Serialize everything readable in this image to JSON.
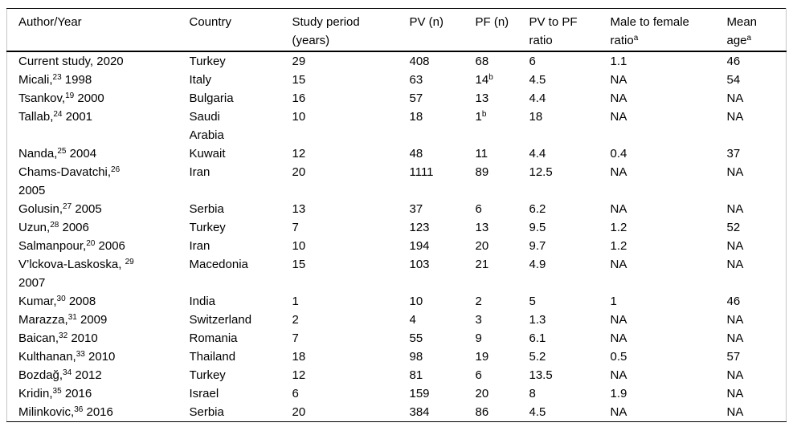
{
  "colors": {
    "background": "#ffffff",
    "text": "#000000",
    "rule": "#000000",
    "side_frame": "#c6c6c6"
  },
  "table": {
    "columns": [
      {
        "id": "author",
        "segments": [
          "Author/Year"
        ]
      },
      {
        "id": "country",
        "segments": [
          "Country"
        ]
      },
      {
        "id": "period",
        "segments": [
          "Study period\n(years)"
        ]
      },
      {
        "id": "pv",
        "segments": [
          "PV (n)"
        ]
      },
      {
        "id": "pf",
        "segments": [
          "PF (n)"
        ]
      },
      {
        "id": "ratio",
        "segments": [
          "PV to PF\nratio"
        ]
      },
      {
        "id": "mf",
        "segments": [
          "Male to female\nratio",
          {
            "sup": "a"
          }
        ]
      },
      {
        "id": "age",
        "segments": [
          "Mean\nage",
          {
            "sup": "a"
          }
        ]
      }
    ],
    "rows": [
      {
        "cells": [
          [
            "Current study, 2020"
          ],
          [
            "Turkey"
          ],
          [
            "29"
          ],
          [
            "408"
          ],
          [
            "68"
          ],
          [
            "6"
          ],
          [
            "1.1"
          ],
          [
            "46"
          ]
        ]
      },
      {
        "cells": [
          [
            "Micali,",
            {
              "sup": "23"
            },
            " 1998"
          ],
          [
            "Italy"
          ],
          [
            "15"
          ],
          [
            "63"
          ],
          [
            "14",
            {
              "sup": "b"
            }
          ],
          [
            "4.5"
          ],
          [
            "NA"
          ],
          [
            "54"
          ]
        ]
      },
      {
        "cells": [
          [
            "Tsankov,",
            {
              "sup": "19"
            },
            " 2000"
          ],
          [
            "Bulgaria"
          ],
          [
            "16"
          ],
          [
            "57"
          ],
          [
            "13"
          ],
          [
            "4.4"
          ],
          [
            "NA"
          ],
          [
            "NA"
          ]
        ]
      },
      {
        "cells": [
          [
            "Tallab,",
            {
              "sup": "24"
            },
            " 2001"
          ],
          [
            "Saudi\nArabia"
          ],
          [
            "10"
          ],
          [
            "18"
          ],
          [
            "1",
            {
              "sup": "b"
            }
          ],
          [
            "18"
          ],
          [
            "NA"
          ],
          [
            "NA"
          ]
        ]
      },
      {
        "cells": [
          [
            "Nanda,",
            {
              "sup": "25"
            },
            " 2004"
          ],
          [
            "Kuwait"
          ],
          [
            "12"
          ],
          [
            "48"
          ],
          [
            "11"
          ],
          [
            "4.4"
          ],
          [
            "0.4"
          ],
          [
            "37"
          ]
        ]
      },
      {
        "cells": [
          [
            "Chams-Davatchi,",
            {
              "sup": "26"
            },
            "\n2005"
          ],
          [
            "Iran"
          ],
          [
            "20"
          ],
          [
            "1111"
          ],
          [
            "89"
          ],
          [
            "12.5"
          ],
          [
            "NA"
          ],
          [
            "NA"
          ]
        ]
      },
      {
        "cells": [
          [
            "Golusin,",
            {
              "sup": "27"
            },
            " 2005"
          ],
          [
            "Serbia"
          ],
          [
            "13"
          ],
          [
            "37"
          ],
          [
            "6"
          ],
          [
            "6.2"
          ],
          [
            "NA"
          ],
          [
            "NA"
          ]
        ]
      },
      {
        "cells": [
          [
            "Uzun,",
            {
              "sup": "28"
            },
            " 2006"
          ],
          [
            "Turkey"
          ],
          [
            "7"
          ],
          [
            "123"
          ],
          [
            "13"
          ],
          [
            "9.5"
          ],
          [
            "1.2"
          ],
          [
            "52"
          ]
        ]
      },
      {
        "cells": [
          [
            "Salmanpour,",
            {
              "sup": "20"
            },
            " 2006"
          ],
          [
            "Iran"
          ],
          [
            "10"
          ],
          [
            "194"
          ],
          [
            "20"
          ],
          [
            "9.7"
          ],
          [
            "1.2"
          ],
          [
            "NA"
          ]
        ]
      },
      {
        "cells": [
          [
            "V’lckova-Laskoska, ",
            {
              "sup": "29"
            },
            "\n2007"
          ],
          [
            "Macedonia"
          ],
          [
            "15"
          ],
          [
            "103"
          ],
          [
            "21"
          ],
          [
            "4.9"
          ],
          [
            "NA"
          ],
          [
            "NA"
          ]
        ]
      },
      {
        "cells": [
          [
            "Kumar,",
            {
              "sup": "30"
            },
            " 2008"
          ],
          [
            "India"
          ],
          [
            "1"
          ],
          [
            "10"
          ],
          [
            "2"
          ],
          [
            "5"
          ],
          [
            "1"
          ],
          [
            "46"
          ]
        ]
      },
      {
        "cells": [
          [
            "Marazza,",
            {
              "sup": "31"
            },
            " 2009"
          ],
          [
            "Switzerland"
          ],
          [
            "2"
          ],
          [
            "4"
          ],
          [
            "3"
          ],
          [
            "1.3"
          ],
          [
            "NA"
          ],
          [
            "NA"
          ]
        ]
      },
      {
        "cells": [
          [
            "Baican,",
            {
              "sup": "32"
            },
            " 2010"
          ],
          [
            "Romania"
          ],
          [
            "7"
          ],
          [
            "55"
          ],
          [
            "9"
          ],
          [
            "6.1"
          ],
          [
            "NA"
          ],
          [
            "NA"
          ]
        ]
      },
      {
        "cells": [
          [
            "Kulthanan,",
            {
              "sup": "33"
            },
            " 2010"
          ],
          [
            "Thailand"
          ],
          [
            "18"
          ],
          [
            "98"
          ],
          [
            "19"
          ],
          [
            "5.2"
          ],
          [
            "0.5"
          ],
          [
            "57"
          ]
        ]
      },
      {
        "cells": [
          [
            "Bozdağ,",
            {
              "sup": "34"
            },
            " 2012"
          ],
          [
            "Turkey"
          ],
          [
            "12"
          ],
          [
            "81"
          ],
          [
            "6"
          ],
          [
            "13.5"
          ],
          [
            "NA"
          ],
          [
            "NA"
          ]
        ]
      },
      {
        "cells": [
          [
            "Kridin,",
            {
              "sup": "35"
            },
            " 2016"
          ],
          [
            "Israel"
          ],
          [
            "6"
          ],
          [
            "159"
          ],
          [
            "20"
          ],
          [
            "8"
          ],
          [
            "1.9"
          ],
          [
            "NA"
          ]
        ]
      },
      {
        "cells": [
          [
            "Milinkovic,",
            {
              "sup": "36"
            },
            " 2016"
          ],
          [
            "Serbia"
          ],
          [
            "20"
          ],
          [
            "384"
          ],
          [
            "86"
          ],
          [
            "4.5"
          ],
          [
            "NA"
          ],
          [
            "NA"
          ]
        ]
      }
    ]
  }
}
